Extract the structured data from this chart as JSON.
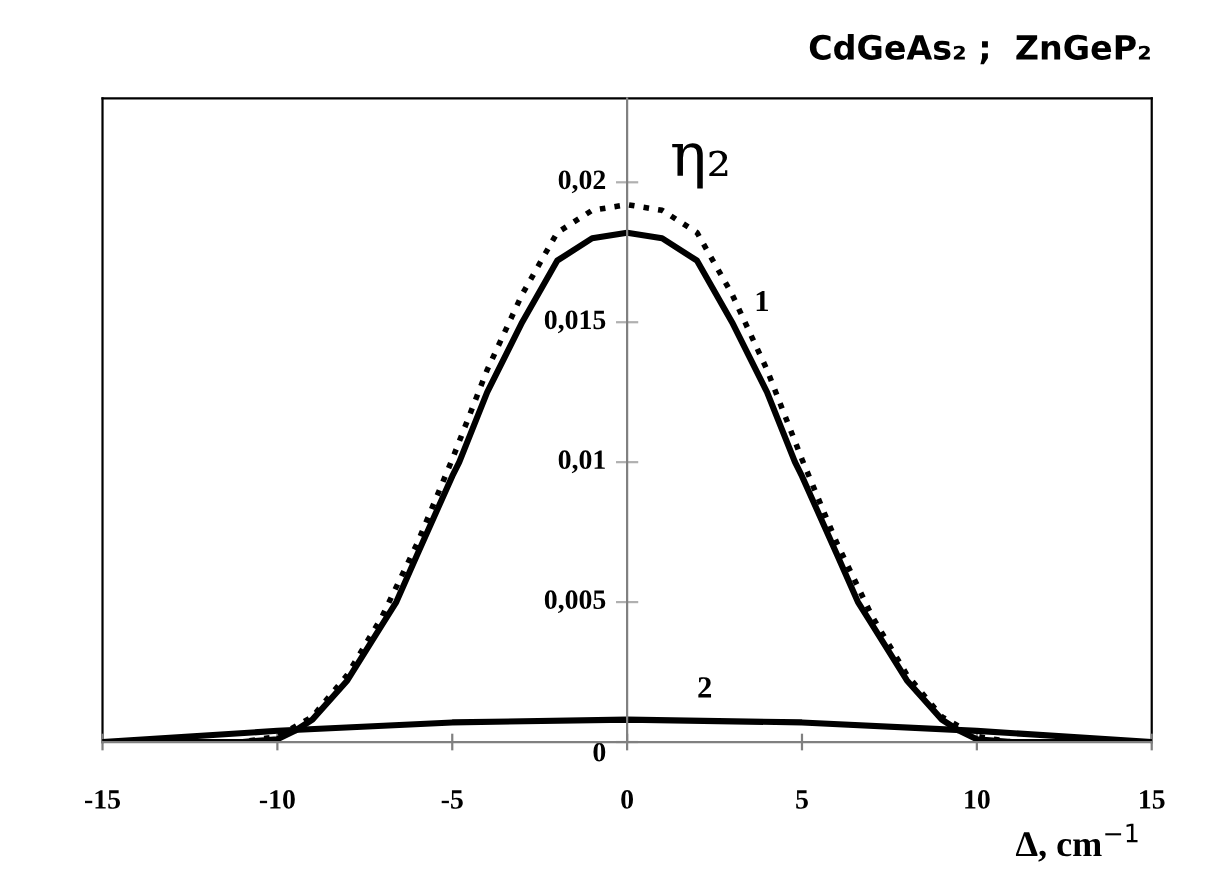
{
  "chart_data": {
    "type": "line",
    "title": "CdGeAs₂ ;  ZnGeP₂",
    "xlabel": "Δ, cm$^{−1}$",
    "ylabel": "η₂",
    "xlim": [
      -15,
      15
    ],
    "xticks": [
      -15,
      -10,
      -5,
      0,
      5,
      10,
      15
    ],
    "ylim": [
      0,
      0.023
    ],
    "yticks": [
      {
        "value": 0,
        "label": "0"
      },
      {
        "value": 0.005,
        "label": "0,005"
      },
      {
        "value": 0.01,
        "label": "0,01"
      },
      {
        "value": 0.015,
        "label": "0,015"
      },
      {
        "value": 0.02,
        "label": "0,02"
      }
    ],
    "grid": false,
    "series": [
      {
        "name": "1",
        "color": "#000000",
        "line_style": "solid",
        "x": [
          -15,
          -13,
          -12,
          -11,
          -10,
          -9.5,
          -9,
          -8,
          -7,
          -6.6,
          -6,
          -5,
          -4.8,
          -4,
          -3,
          -2,
          -1,
          0,
          1,
          2,
          3,
          4,
          4.8,
          5,
          6,
          6.6,
          7,
          8,
          9,
          9.5,
          10,
          11,
          12,
          13,
          15
        ],
        "values": [
          0,
          0,
          0,
          0,
          0.0001,
          0.0004,
          0.0008,
          0.0022,
          0.0042,
          0.005,
          0.0067,
          0.0095,
          0.01,
          0.0125,
          0.015,
          0.0172,
          0.018,
          0.0182,
          0.018,
          0.0172,
          0.015,
          0.0125,
          0.01,
          0.0095,
          0.0067,
          0.005,
          0.0042,
          0.0022,
          0.0008,
          0.0004,
          0.0001,
          0,
          0,
          0,
          0
        ]
      },
      {
        "color": "#000000",
        "line_style": "dotted",
        "x": [
          -15,
          -13,
          -12,
          -11,
          -10,
          -9,
          -8,
          -7,
          -6,
          -5,
          -4,
          -3,
          -2,
          -1,
          0,
          1,
          2,
          3,
          4,
          5,
          6,
          7,
          8,
          9,
          10,
          11,
          12,
          13,
          15
        ],
        "values": [
          0,
          0,
          0,
          0,
          0.0002,
          0.0009,
          0.0024,
          0.0045,
          0.0071,
          0.0101,
          0.0133,
          0.016,
          0.0182,
          0.019,
          0.0192,
          0.019,
          0.0182,
          0.016,
          0.0133,
          0.0101,
          0.0071,
          0.0045,
          0.0024,
          0.0009,
          0.0002,
          0,
          0,
          0,
          0
        ]
      },
      {
        "name": "2",
        "color": "#000000",
        "line_style": "solid",
        "x": [
          -15,
          -10,
          -5,
          0,
          5,
          10,
          15
        ],
        "values": [
          0,
          0.0004,
          0.0007,
          0.0008,
          0.0007,
          0.0004,
          0
        ]
      }
    ]
  }
}
